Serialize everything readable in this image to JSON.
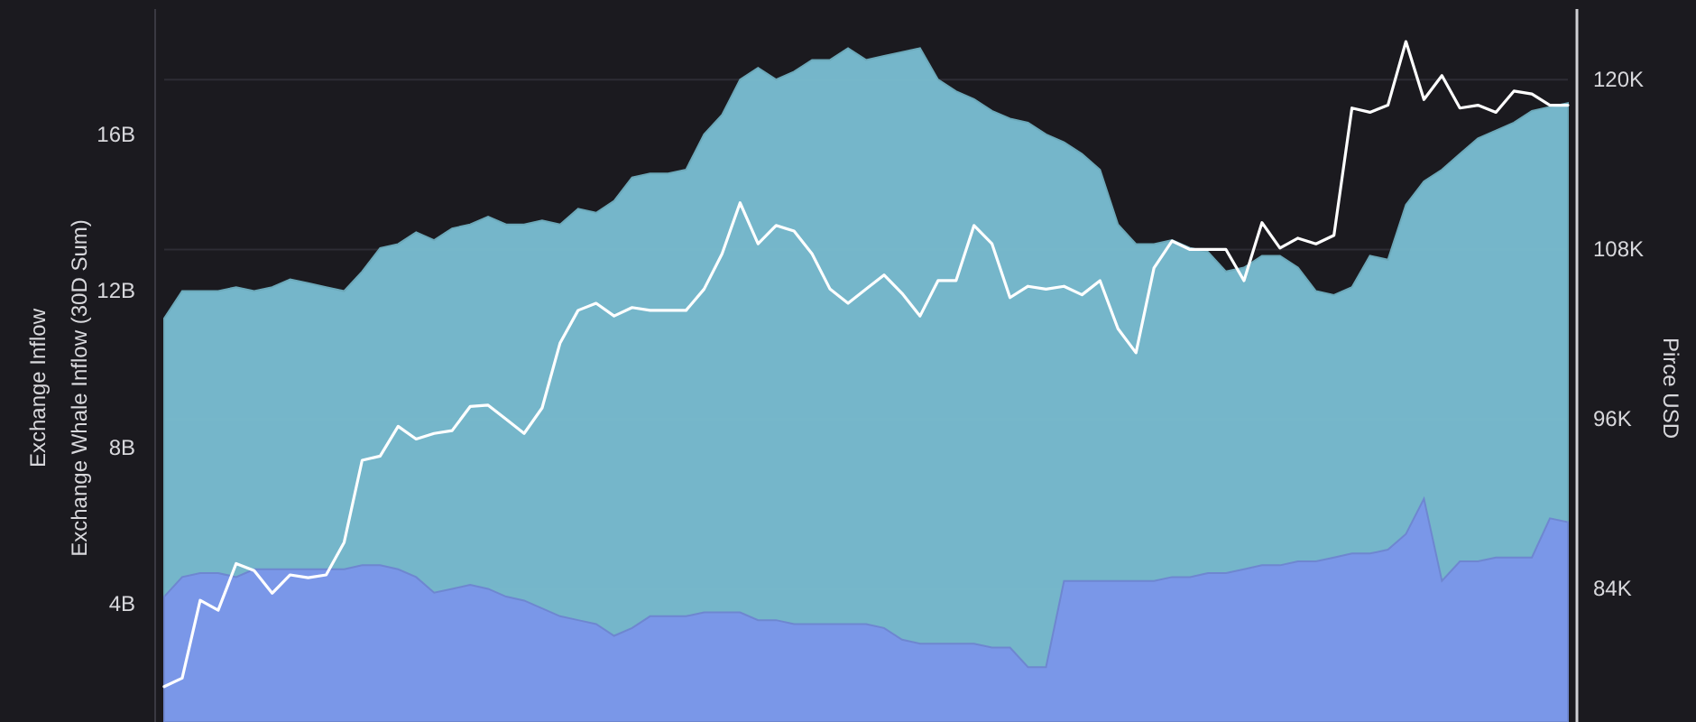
{
  "chart_data": {
    "type": "area",
    "ylabel": "Exchange Inflow\nExchange Whale Inflow (30D Sum)",
    "y2label": "Pirce USD",
    "categories": [
      null,
      null,
      null,
      null,
      null,
      null,
      null,
      null,
      null,
      null,
      null,
      null,
      null,
      null,
      null,
      null,
      null,
      null,
      null,
      null,
      null,
      null,
      null,
      null,
      null,
      null,
      null,
      null,
      null,
      null,
      null,
      null,
      null,
      null,
      null,
      null,
      null,
      null,
      null,
      null,
      null,
      null,
      null,
      null,
      null,
      null,
      null,
      null,
      null,
      null,
      null,
      null,
      null,
      null,
      null,
      null,
      null,
      null,
      null,
      null,
      null,
      null,
      null,
      null,
      null,
      null,
      null,
      null,
      null,
      null,
      null,
      null,
      null,
      null,
      null,
      null,
      null,
      null,
      null
    ],
    "series": [
      {
        "type": "area",
        "color": "#79bccf",
        "values": [
          11.3,
          12.0,
          12.0,
          12.0,
          12.1,
          12.0,
          12.1,
          12.3,
          12.2,
          12.1,
          12.0,
          12.5,
          13.1,
          13.2,
          13.5,
          13.3,
          13.6,
          13.7,
          13.9,
          13.7,
          13.7,
          13.8,
          13.7,
          14.1,
          14.0,
          14.3,
          14.9,
          15.0,
          15.0,
          15.1,
          16.0,
          16.5,
          17.4,
          17.7,
          17.4,
          17.6,
          17.9,
          17.9,
          18.2,
          17.9,
          18.0,
          18.1,
          18.2,
          17.4,
          17.1,
          16.9,
          16.6,
          16.4,
          16.3,
          16.0,
          15.8,
          15.5,
          15.1,
          13.7,
          13.2,
          13.2,
          13.3,
          13.1,
          13.0,
          12.5,
          12.6,
          12.9,
          12.9,
          12.6,
          12.0,
          11.9,
          12.1,
          12.9,
          12.8,
          14.2,
          14.8,
          15.1,
          15.5,
          15.9,
          16.1,
          16.3,
          16.6,
          16.7,
          16.8
        ]
      },
      {
        "type": "area",
        "color": "#7a96e8",
        "values": [
          4.2,
          4.7,
          4.8,
          4.8,
          4.7,
          4.9,
          4.9,
          4.9,
          4.9,
          4.9,
          4.9,
          5.0,
          5.0,
          4.9,
          4.7,
          4.3,
          4.4,
          4.5,
          4.4,
          4.2,
          4.1,
          3.9,
          3.7,
          3.6,
          3.5,
          3.2,
          3.4,
          3.7,
          3.7,
          3.7,
          3.8,
          3.8,
          3.8,
          3.6,
          3.6,
          3.5,
          3.5,
          3.5,
          3.5,
          3.5,
          3.4,
          3.1,
          3.0,
          3.0,
          3.0,
          3.0,
          2.9,
          2.9,
          2.4,
          2.4,
          4.6,
          4.6,
          4.6,
          4.6,
          4.6,
          4.6,
          4.7,
          4.7,
          4.8,
          4.8,
          4.9,
          5.0,
          5.0,
          5.1,
          5.1,
          5.2,
          5.3,
          5.3,
          5.4,
          5.8,
          6.7,
          4.6,
          5.1,
          5.1,
          5.2,
          5.2,
          5.2,
          6.2,
          6.1
        ]
      },
      {
        "type": "line",
        "axis": "y2",
        "color": "#ffffff",
        "values": [
          77.1,
          77.7,
          83.2,
          82.5,
          85.8,
          85.3,
          83.7,
          85.0,
          84.8,
          85.0,
          87.3,
          93.1,
          93.4,
          95.5,
          94.6,
          95.0,
          95.2,
          96.9,
          97.0,
          96.0,
          95.0,
          96.8,
          101.4,
          103.7,
          104.2,
          103.3,
          103.9,
          103.7,
          103.7,
          103.7,
          105.2,
          107.7,
          111.3,
          108.4,
          109.7,
          109.3,
          107.7,
          105.2,
          104.2,
          105.2,
          106.2,
          104.9,
          103.3,
          105.8,
          105.8,
          109.7,
          108.4,
          104.6,
          105.4,
          105.2,
          105.4,
          104.8,
          105.8,
          102.4,
          100.7,
          106.7,
          108.6,
          108.0,
          108.0,
          108.0,
          105.8,
          109.9,
          108.1,
          108.8,
          108.4,
          109.0,
          118.0,
          117.7,
          118.2,
          122.7,
          118.6,
          120.3,
          118.0,
          118.2,
          117.7,
          119.2,
          119.0,
          118.2,
          118.2
        ]
      }
    ],
    "ylim": [
      1.0,
      19.2
    ],
    "yticks": [
      {
        "value": 4,
        "label": "4B"
      },
      {
        "value": 8,
        "label": "8B"
      },
      {
        "value": 12,
        "label": "12B"
      },
      {
        "value": 16,
        "label": "16B"
      }
    ],
    "y2lim": [
      74.6,
      125.0
    ],
    "y2ticks": [
      {
        "value": 84,
        "label": "84K"
      },
      {
        "value": 96,
        "label": "96K"
      },
      {
        "value": 108,
        "label": "108K"
      },
      {
        "value": 120,
        "label": "120K"
      }
    ],
    "grid": "y",
    "tick_labels": "y"
  }
}
